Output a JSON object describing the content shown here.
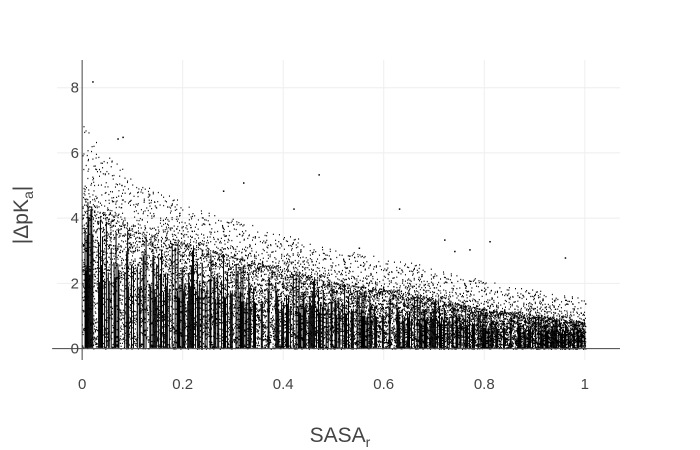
{
  "chart_data": {
    "type": "scatter",
    "title": "",
    "xlabel": {
      "main": "SASA",
      "sub": "r"
    },
    "ylabel": {
      "prefix": "|ΔpK",
      "sub": "a",
      "suffix": "|"
    },
    "xlim": [
      -0.05,
      1.07
    ],
    "ylim": [
      -0.35,
      8.85
    ],
    "x_ticks": [
      0,
      0.2,
      0.4,
      0.6,
      0.8,
      1
    ],
    "x_tick_labels": [
      "0",
      "0.2",
      "0.4",
      "0.6",
      "0.8",
      "1"
    ],
    "y_ticks": [
      0,
      2,
      4,
      6,
      8
    ],
    "y_tick_labels": [
      "0",
      "2",
      "4",
      "6",
      "8"
    ],
    "grid": true,
    "marker_color": "#000000",
    "x_domain": [
      0,
      1
    ],
    "envelope": [
      {
        "x": 0.0,
        "y_dense": 4.7,
        "y_max": 7.0
      },
      {
        "x": 0.05,
        "y_dense": 4.0,
        "y_max": 6.0
      },
      {
        "x": 0.1,
        "y_dense": 3.6,
        "y_max": 5.2
      },
      {
        "x": 0.2,
        "y_dense": 3.2,
        "y_max": 4.5
      },
      {
        "x": 0.3,
        "y_dense": 2.8,
        "y_max": 4.0
      },
      {
        "x": 0.4,
        "y_dense": 2.4,
        "y_max": 3.5
      },
      {
        "x": 0.5,
        "y_dense": 2.0,
        "y_max": 3.1
      },
      {
        "x": 0.6,
        "y_dense": 1.8,
        "y_max": 2.8
      },
      {
        "x": 0.7,
        "y_dense": 1.5,
        "y_max": 2.5
      },
      {
        "x": 0.8,
        "y_dense": 1.2,
        "y_max": 2.1
      },
      {
        "x": 0.9,
        "y_dense": 1.0,
        "y_max": 1.8
      },
      {
        "x": 1.0,
        "y_dense": 0.8,
        "y_max": 1.6
      }
    ],
    "outliers": [
      {
        "x": 0.02,
        "y": 8.2
      },
      {
        "x": 0.08,
        "y": 6.5
      },
      {
        "x": 0.07,
        "y": 6.45
      },
      {
        "x": 0.32,
        "y": 5.1
      },
      {
        "x": 0.47,
        "y": 5.35
      },
      {
        "x": 0.28,
        "y": 4.85
      },
      {
        "x": 0.63,
        "y": 4.3
      },
      {
        "x": 0.42,
        "y": 4.3
      },
      {
        "x": 0.55,
        "y": 3.1
      },
      {
        "x": 0.77,
        "y": 3.05
      },
      {
        "x": 0.74,
        "y": 3.0
      },
      {
        "x": 0.72,
        "y": 3.35
      },
      {
        "x": 0.96,
        "y": 2.8
      },
      {
        "x": 0.81,
        "y": 3.3
      }
    ],
    "notes_visible": "dense point cloud; upper edge decays from about 7 at x=0 to about 1.6 at x=1"
  }
}
